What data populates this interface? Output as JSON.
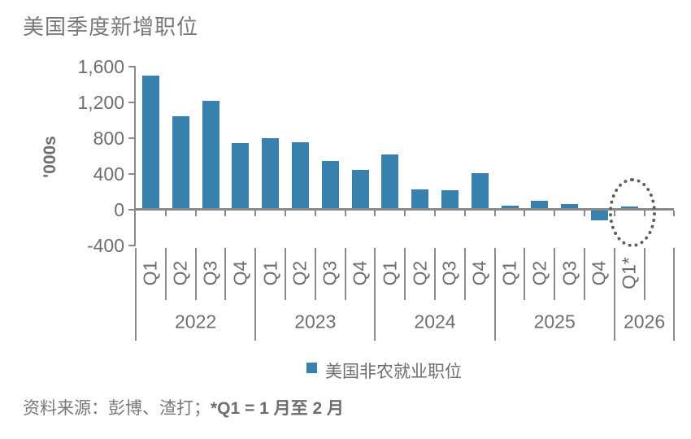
{
  "title": "美国季度新增职位",
  "legend": {
    "label": "美国非农就业职位",
    "marker_color": "#3881ae"
  },
  "source_note": {
    "prefix": "资料来源：彭博、渣打；",
    "suffix": "*Q1 = 1 月至 2 月"
  },
  "colors": {
    "bar": "#3881ae",
    "axis": "#898a8d",
    "separator": "#8a8b8e",
    "text": "#6d6e71",
    "title_text": "#77787b",
    "highlight_ellipse": "#5e5f61"
  },
  "chart_data": {
    "type": "bar",
    "title": "美国季度新增职位",
    "xlabel": "",
    "ylabel": "'000s",
    "ylim": [
      -400,
      1600
    ],
    "grid": false,
    "legend_position": "bottom-center",
    "yticks": [
      {
        "value": 1600,
        "label": "1,600"
      },
      {
        "value": 1200,
        "label": "1,200"
      },
      {
        "value": 800,
        "label": "800"
      },
      {
        "value": 400,
        "label": "400"
      },
      {
        "value": 0,
        "label": "0"
      },
      {
        "value": -400,
        "label": "-400"
      }
    ],
    "categories": [
      "2022 Q1",
      "2022 Q2",
      "2022 Q3",
      "2022 Q4",
      "2023 Q1",
      "2023 Q2",
      "2023 Q3",
      "2023 Q4",
      "2024 Q1",
      "2024 Q2",
      "2024 Q3",
      "2024 Q4",
      "2025 Q1",
      "2025 Q2",
      "2025 Q3",
      "2025 Q4",
      "2026 Q1*"
    ],
    "quarter_labels": [
      "Q1",
      "Q2",
      "Q3",
      "Q4",
      "Q1",
      "Q2",
      "Q3",
      "Q4",
      "Q1",
      "Q2",
      "Q3",
      "Q4",
      "Q1",
      "Q2",
      "Q3",
      "Q4",
      "Q1*"
    ],
    "year_groups": [
      {
        "label": "2022",
        "slots": 4
      },
      {
        "label": "2023",
        "slots": 4
      },
      {
        "label": "2024",
        "slots": 4
      },
      {
        "label": "2025",
        "slots": 4
      },
      {
        "label": "2026",
        "slots": 2
      }
    ],
    "series": [
      {
        "name": "美国非农就业职位",
        "values": [
          1500,
          1050,
          1220,
          750,
          800,
          755,
          545,
          445,
          615,
          230,
          215,
          405,
          50,
          100,
          60,
          -110,
          40
        ]
      }
    ],
    "highlight": {
      "index": 16,
      "style": "dotted-ellipse",
      "note": "forecast quarter circled"
    }
  }
}
